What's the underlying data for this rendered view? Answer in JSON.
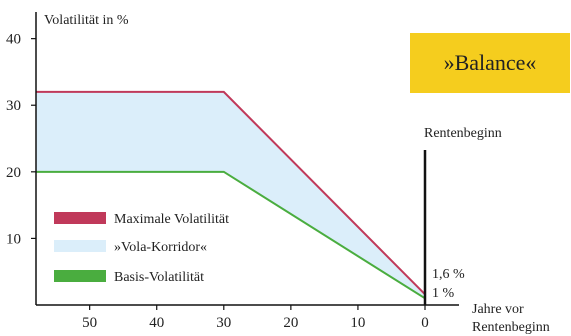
{
  "chart_data": {
    "type": "area",
    "ylabel": "Volatilität in %",
    "xlabel": "Jahre vor Rentenbeginn",
    "xlabel_lines": [
      "Jahre vor",
      "Rentenbeginn"
    ],
    "x_reversed": true,
    "xlim": [
      58,
      0
    ],
    "ylim": [
      0,
      44
    ],
    "x_ticks": [
      50,
      40,
      30,
      20,
      10,
      0
    ],
    "y_ticks": [
      10,
      20,
      30,
      40
    ],
    "grid": false,
    "badge": "»Balance«",
    "marker_label": "Rentenbeginn",
    "series": [
      {
        "name": "Maximale Volatilität",
        "color": "#c0395a",
        "x": [
          58,
          30,
          0
        ],
        "y": [
          32,
          32,
          1.6
        ]
      },
      {
        "name": "»Vola-Korridor«",
        "color": "#dbeefa",
        "x": [
          58,
          30,
          0
        ],
        "y_low": [
          20,
          20,
          1
        ],
        "y_high": [
          32,
          32,
          1.6
        ]
      },
      {
        "name": "Basis-Volatilität",
        "color": "#4aad3f",
        "x": [
          58,
          30,
          0
        ],
        "y": [
          20,
          20,
          1
        ]
      }
    ],
    "end_labels": [
      {
        "text": "1,6 %",
        "color": "#c0395a"
      },
      {
        "text": "1 %",
        "color": "#4aad3f"
      }
    ],
    "legend_position": "bottom-left"
  }
}
